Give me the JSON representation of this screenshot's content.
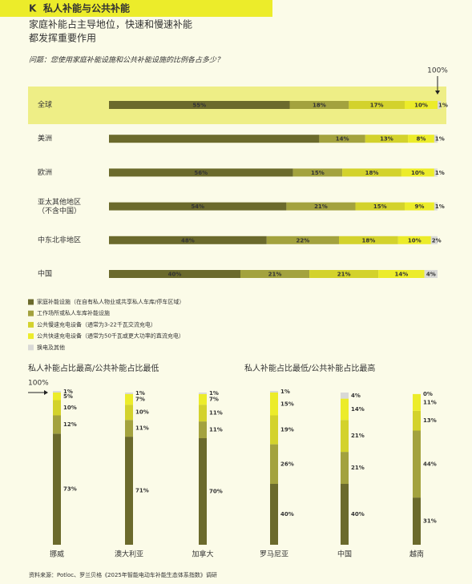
{
  "section": "K",
  "title": "私人补能与公共补能",
  "subtitle": [
    "家庭补能占主导地位，快速和慢速补能",
    "都发挥重要作用"
  ],
  "question": "问题：您使用家庭补能设施和公共补能设施的比例各占多少？",
  "source": "资料来源：Potloc、罗兰贝格《2025年智能电动车补能生态体系指数》调研",
  "chart_data": [
    {
      "type": "hbar-stacked",
      "total_label": "100%",
      "xlim": [
        0,
        100
      ],
      "categories": [
        "全球",
        "美洲",
        "欧洲",
        "亚太其他地区\n（不含中国）",
        "中东北非地区",
        "中国"
      ],
      "series": [
        {
          "name": "家庭补能设施（在自有私人物业或共享私人车库/停车区域）",
          "color": "#6b6a2c",
          "values": [
            55,
            64,
            56,
            54,
            48,
            40
          ],
          "value_labels": [
            "55%",
            null,
            "56%",
            "54%",
            "48%",
            "40%"
          ]
        },
        {
          "name": "工作场所或私人车库补能设施",
          "color": "#a3a23e",
          "values": [
            18,
            14,
            15,
            21,
            22,
            21
          ],
          "value_labels": [
            "18%",
            "14%",
            "15%",
            "21%",
            "22%",
            "21%"
          ]
        },
        {
          "name": "公共慢速充电设备（通常为3-22千瓦交流充电）",
          "color": "#d3d22c",
          "values": [
            17,
            13,
            18,
            15,
            18,
            21
          ],
          "value_labels": [
            "17%",
            "13%",
            "18%",
            "15%",
            "18%",
            "21%"
          ]
        },
        {
          "name": "公共快速充电设备（通常为50千瓦或更大功率的直流充电）",
          "color": "#ecec2a",
          "values": [
            10,
            8,
            10,
            9,
            10,
            14
          ],
          "value_labels": [
            "10%",
            "8%",
            "10%",
            "9%",
            "10%",
            "14%"
          ]
        },
        {
          "name": "换电及其他",
          "color": "#d9d9d6",
          "values": [
            1,
            1,
            1,
            1,
            2,
            4
          ],
          "value_labels": [
            "1%",
            "1%",
            "1%",
            "1%",
            "2%",
            "4%"
          ]
        }
      ]
    },
    {
      "type": "vbar-stacked",
      "title": "私人补能占比最高/公共补能占比最低",
      "total_label": "100%",
      "ylim": [
        0,
        100
      ],
      "categories": [
        "挪威",
        "澳大利亚",
        "加拿大"
      ],
      "series": [
        {
          "color": "#6b6a2c",
          "values": [
            73,
            71,
            70
          ],
          "value_labels": [
            "73%",
            "71%",
            "70%"
          ]
        },
        {
          "color": "#a3a23e",
          "values": [
            12,
            11,
            11
          ],
          "value_labels": [
            "12%",
            "11%",
            "11%"
          ]
        },
        {
          "color": "#d3d22c",
          "values": [
            10,
            10,
            11
          ],
          "value_labels": [
            "10%",
            "10%",
            "11%"
          ]
        },
        {
          "color": "#ecec2a",
          "values": [
            5,
            7,
            7
          ],
          "value_labels": [
            "5%",
            "7%",
            "7%"
          ]
        },
        {
          "color": "#d9d9d6",
          "values": [
            1,
            1,
            1
          ],
          "value_labels": [
            "1%",
            "1%",
            "1%"
          ]
        }
      ]
    },
    {
      "type": "vbar-stacked",
      "title": "私人补能占比最低/公共补能占比最高",
      "ylim": [
        0,
        100
      ],
      "categories": [
        "罗马尼亚",
        "中国",
        "越南"
      ],
      "series": [
        {
          "color": "#6b6a2c",
          "values": [
            40,
            40,
            31
          ],
          "value_labels": [
            "40%",
            "40%",
            "31%"
          ]
        },
        {
          "color": "#a3a23e",
          "values": [
            26,
            21,
            44
          ],
          "value_labels": [
            "26%",
            "21%",
            "44%"
          ]
        },
        {
          "color": "#d3d22c",
          "values": [
            19,
            21,
            13
          ],
          "value_labels": [
            "19%",
            "21%",
            "13%"
          ]
        },
        {
          "color": "#ecec2a",
          "values": [
            15,
            14,
            11
          ],
          "value_labels": [
            "15%",
            "14%",
            "11%"
          ]
        },
        {
          "color": "#d9d9d6",
          "values": [
            1,
            4,
            0
          ],
          "value_labels": [
            "1%",
            "4%",
            "0%"
          ]
        }
      ]
    }
  ]
}
